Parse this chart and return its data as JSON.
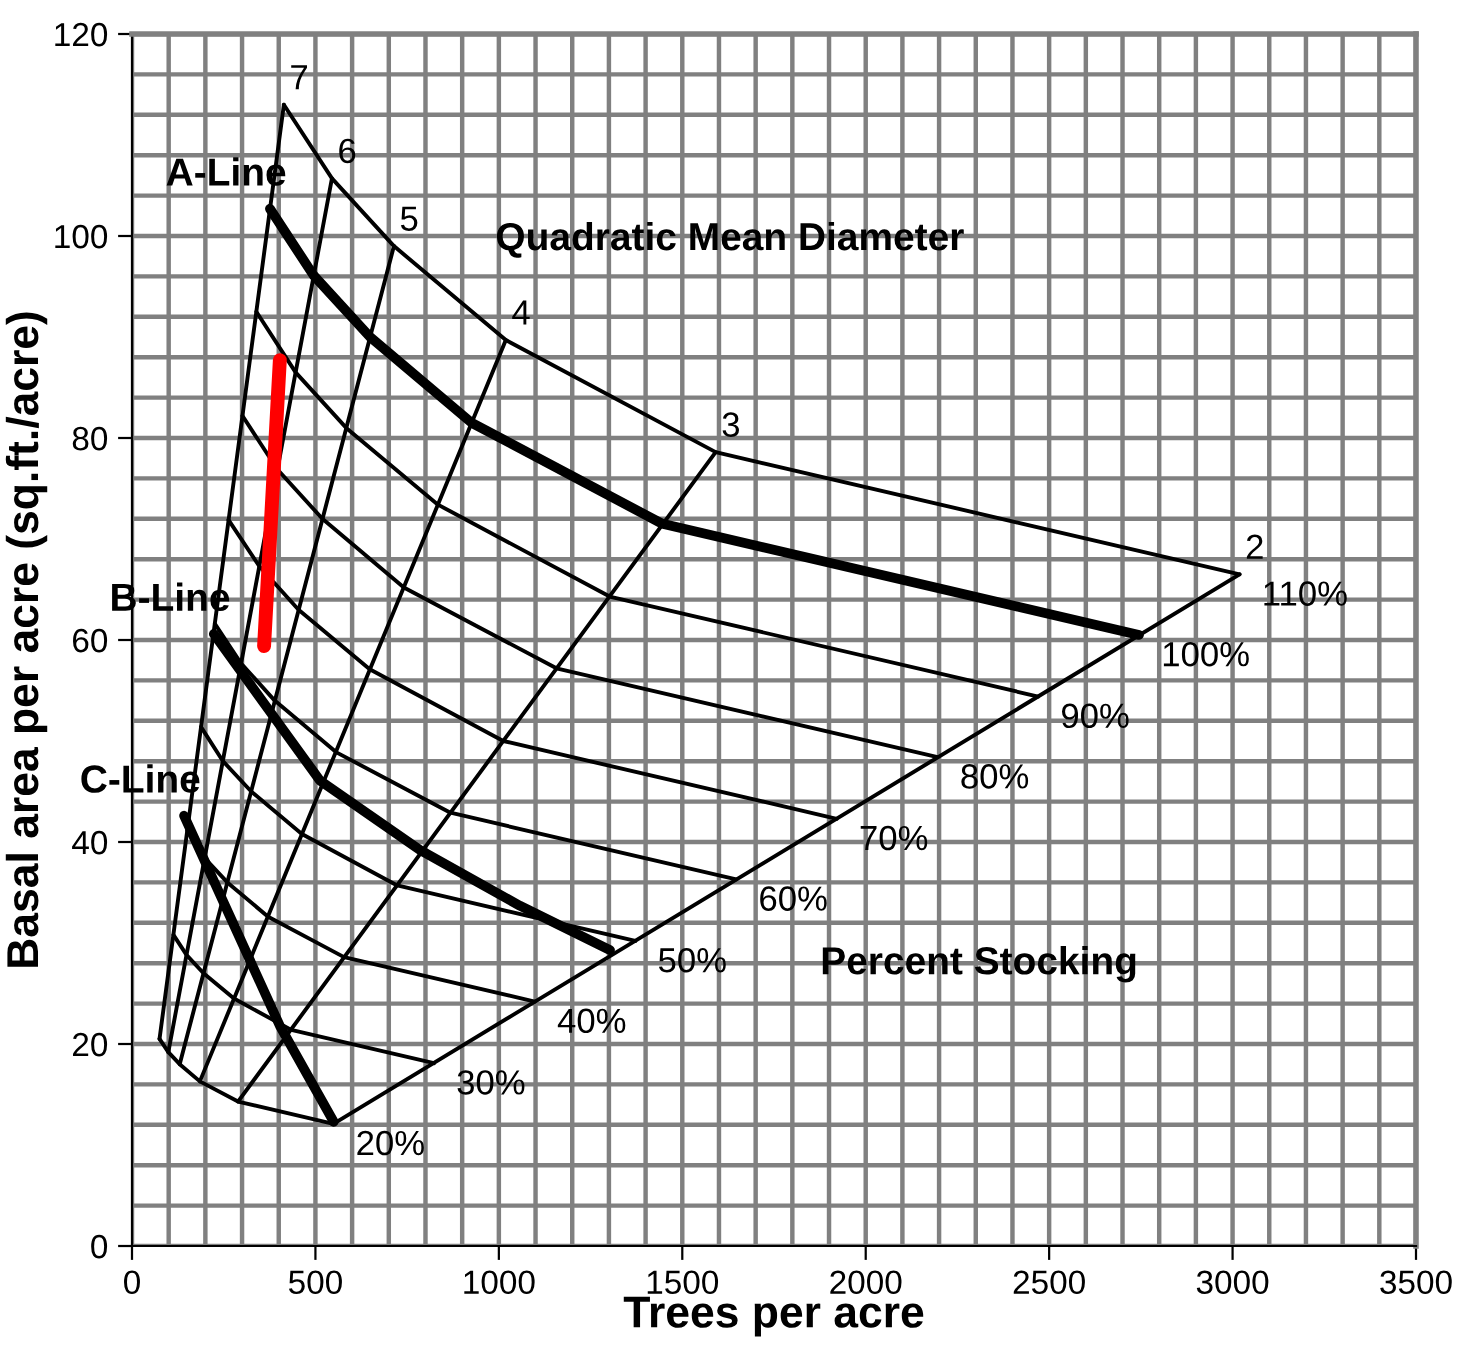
{
  "chart_data": {
    "type": "line",
    "xlabel": "Trees per acre",
    "ylabel": "Basal area per acre (sq.ft./acre)",
    "xlim": [
      0,
      3500
    ],
    "ylim": [
      0,
      120
    ],
    "xticks": [
      0,
      500,
      1000,
      1500,
      2000,
      2500,
      3000,
      3500
    ],
    "yticks": [
      0,
      20,
      40,
      60,
      80,
      100,
      120
    ],
    "grid": true,
    "legend": false,
    "marker": "none",
    "line_style": "solid",
    "series": [
      {
        "color": "#000000",
        "x": [
          75,
          99,
          130,
          185,
          289,
          549
        ],
        "values": [
          20.5,
          19.2,
          18.0,
          16.3,
          14.3,
          12.1
        ]
      },
      {
        "color": "#000000",
        "x": [
          113,
          149,
          195,
          278,
          434,
          823
        ],
        "values": [
          30.8,
          28.8,
          27.0,
          24.5,
          21.4,
          18.1
        ]
      },
      {
        "color": "#000000",
        "x": [
          151,
          198,
          260,
          371,
          578,
          1098
        ],
        "values": [
          41.1,
          38.4,
          36.0,
          32.6,
          28.6,
          24.2
        ]
      },
      {
        "color": "#000000",
        "x": [
          188,
          248,
          325,
          463,
          723,
          1372
        ],
        "values": [
          51.4,
          48.0,
          45.0,
          40.8,
          35.7,
          30.2
        ]
      },
      {
        "color": "#000000",
        "x": [
          226,
          297,
          389,
          556,
          868,
          1647
        ],
        "values": [
          61.6,
          57.7,
          54.0,
          48.9,
          42.9,
          36.3
        ]
      },
      {
        "color": "#000000",
        "x": [
          263,
          347,
          454,
          648,
          1012,
          1921
        ],
        "values": [
          71.9,
          67.3,
          63.0,
          57.1,
          50.0,
          42.3
        ]
      },
      {
        "color": "#000000",
        "x": [
          301,
          396,
          519,
          741,
          1157,
          2196
        ],
        "values": [
          82.2,
          76.9,
          72.0,
          65.2,
          57.2,
          48.4
        ]
      },
      {
        "color": "#000000",
        "x": [
          339,
          446,
          584,
          834,
          1302,
          2470
        ],
        "values": [
          92.5,
          86.5,
          81.0,
          73.4,
          64.3,
          54.4
        ]
      },
      {
        "color": "#000000",
        "x": [
          414,
          545,
          714,
          1019,
          1591,
          3019
        ],
        "values": [
          113,
          105.7,
          99,
          89.7,
          78.6,
          66.5
        ]
      },
      {
        "color": "#000000",
        "x": [
          75,
          414
        ],
        "values": [
          20.5,
          113
        ]
      },
      {
        "color": "#000000",
        "x": [
          99,
          545
        ],
        "values": [
          19.2,
          105.7
        ]
      },
      {
        "color": "#000000",
        "x": [
          130,
          714
        ],
        "values": [
          18.0,
          99
        ]
      },
      {
        "color": "#000000",
        "x": [
          185,
          1019
        ],
        "values": [
          16.3,
          89.7
        ]
      },
      {
        "color": "#000000",
        "x": [
          289,
          1591
        ],
        "values": [
          14.3,
          78.6
        ]
      },
      {
        "color": "#000000",
        "x": [
          549,
          3019
        ],
        "values": [
          12.1,
          66.5
        ]
      },
      {
        "name": "A-Line",
        "color": "#000000",
        "x": [
          376,
          495,
          649,
          926,
          1446,
          2745
        ],
        "values": [
          102.7,
          96.1,
          90.0,
          81.5,
          71.5,
          60.5
        ]
      },
      {
        "name": "B-Line",
        "color": "#000000",
        "x": [
          223,
          512,
          785,
          1057,
          1303
        ],
        "values": [
          60.6,
          46.1,
          39.2,
          33.7,
          29.3
        ]
      },
      {
        "name": "C-Line",
        "color": "#000000",
        "x": [
          142,
          403,
          550
        ],
        "values": [
          42.6,
          21.8,
          12.3
        ]
      },
      {
        "color": "#ff0000",
        "x": [
          403,
          360
        ],
        "values": [
          87.7,
          59.4
        ]
      }
    ],
    "annotations": [
      {
        "text": "7",
        "x": 414,
        "y": 113
      },
      {
        "text": "6",
        "x": 545,
        "y": 105.7
      },
      {
        "text": "5",
        "x": 714,
        "y": 99
      },
      {
        "text": "4",
        "x": 1019,
        "y": 89.7
      },
      {
        "text": "3",
        "x": 1591,
        "y": 78.6
      },
      {
        "text": "2",
        "x": 3019,
        "y": 66.5
      },
      {
        "text": "110%",
        "x": 3019,
        "y": 66.5
      },
      {
        "text": "100%",
        "x": 2745,
        "y": 60.5
      },
      {
        "text": "90%",
        "x": 2470,
        "y": 54.4
      },
      {
        "text": "80%",
        "x": 2196,
        "y": 48.4
      },
      {
        "text": "70%",
        "x": 1921,
        "y": 42.3
      },
      {
        "text": "60%",
        "x": 1647,
        "y": 36.3
      },
      {
        "text": "50%",
        "x": 1372,
        "y": 30.2
      },
      {
        "text": "40%",
        "x": 1098,
        "y": 24.2
      },
      {
        "text": "30%",
        "x": 823,
        "y": 18.1
      },
      {
        "text": "20%",
        "x": 549,
        "y": 12.1
      },
      "Quadratic Mean Diameter",
      "Percent Stocking"
    ]
  }
}
